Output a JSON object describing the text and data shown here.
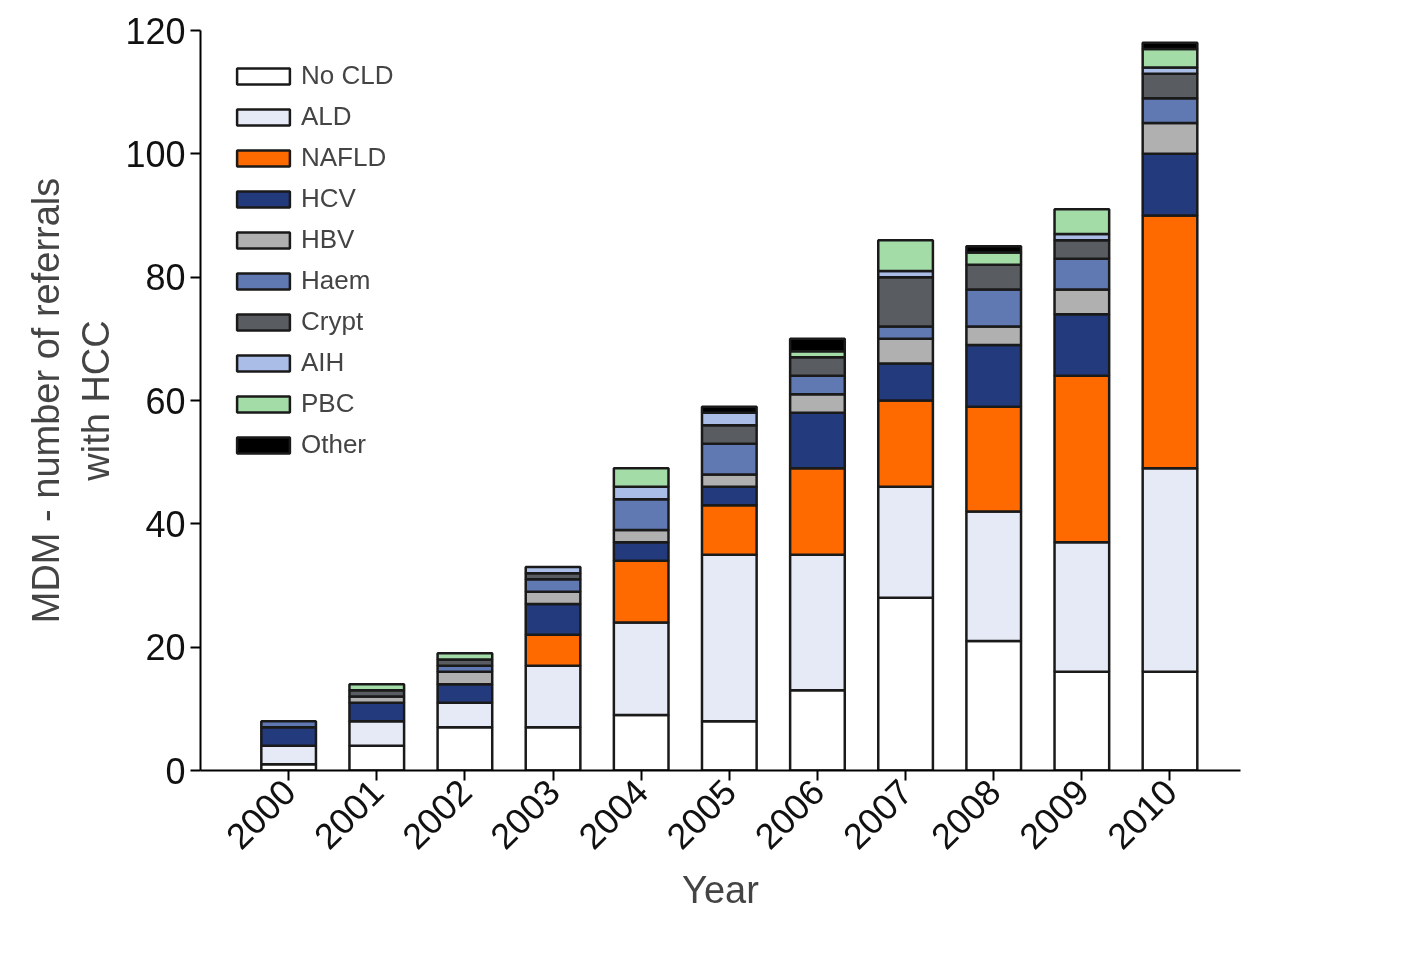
{
  "chart_data": {
    "type": "bar",
    "stacked": true,
    "xlabel": "Year",
    "ylabel": "MDM - number of referrals\nwith HCC",
    "categories": [
      "2000",
      "2001",
      "2002",
      "2003",
      "2004",
      "2005",
      "2006",
      "2007",
      "2008",
      "2009",
      "2010"
    ],
    "series": [
      {
        "name": "No CLD",
        "color": "#ffffff",
        "values": [
          1,
          4,
          7,
          7,
          9,
          8,
          13,
          28,
          21,
          16,
          16
        ]
      },
      {
        "name": "ALD",
        "color": "#e6eaf6",
        "values": [
          3,
          4,
          4,
          10,
          15,
          27,
          22,
          18,
          21,
          21,
          33
        ]
      },
      {
        "name": "NAFLD",
        "color": "#ff6a00",
        "values": [
          0,
          0,
          0,
          5,
          10,
          8,
          14,
          14,
          17,
          27,
          41
        ]
      },
      {
        "name": "HCV",
        "color": "#233a7d",
        "values": [
          3,
          3,
          3,
          5,
          3,
          3,
          9,
          6,
          10,
          10,
          10
        ]
      },
      {
        "name": "HBV",
        "color": "#b0b0b0",
        "values": [
          0,
          1,
          2,
          2,
          2,
          2,
          3,
          4,
          3,
          4,
          5
        ]
      },
      {
        "name": "Haem",
        "color": "#6079b3",
        "values": [
          1,
          0,
          1,
          2,
          5,
          5,
          3,
          2,
          6,
          5,
          4
        ]
      },
      {
        "name": "Crypt",
        "color": "#595c60",
        "values": [
          0,
          1,
          1,
          1,
          0,
          3,
          3,
          8,
          4,
          3,
          4
        ]
      },
      {
        "name": "AIH",
        "color": "#a9bde6",
        "values": [
          0,
          0,
          0,
          1,
          2,
          2,
          0,
          1,
          0,
          1,
          1
        ]
      },
      {
        "name": "PBC",
        "color": "#a4dca8",
        "values": [
          0,
          1,
          1,
          0,
          3,
          0,
          1,
          5,
          2,
          4,
          3
        ]
      },
      {
        "name": "Other",
        "color": "#000000",
        "values": [
          0,
          0,
          0,
          0,
          0,
          1,
          2,
          0,
          1,
          0,
          1
        ]
      }
    ],
    "ylim": [
      0,
      120
    ],
    "yticks": [
      0,
      20,
      40,
      60,
      80,
      100,
      120
    ],
    "grid": false,
    "legend": "top left"
  }
}
